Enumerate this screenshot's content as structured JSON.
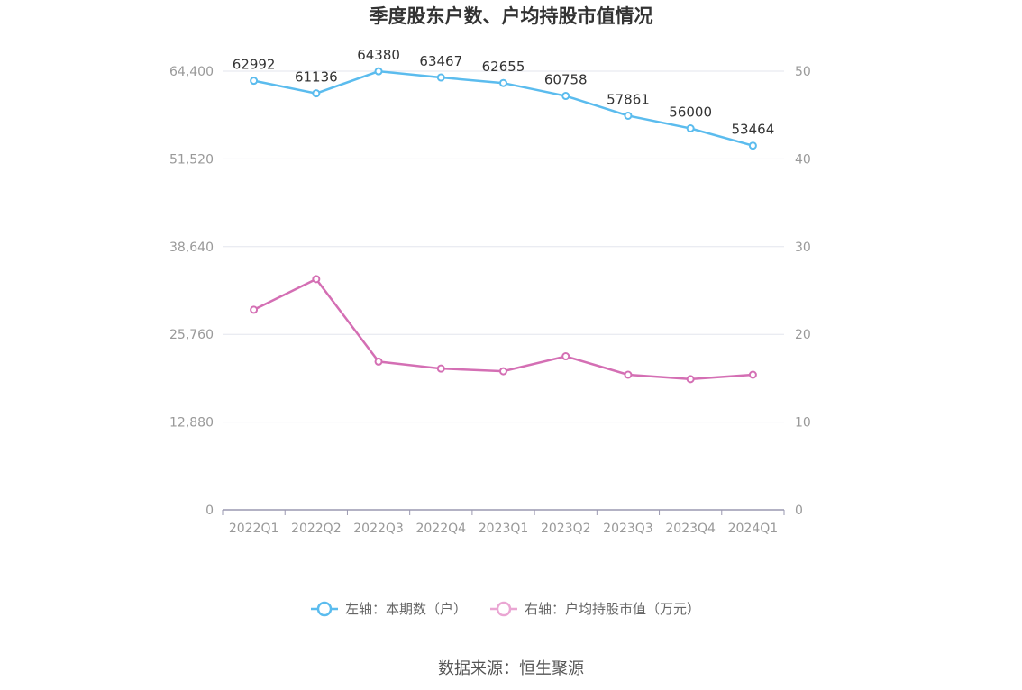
{
  "chart_data": {
    "type": "line",
    "title": "季度股东户数、户均持股市值情况",
    "categories": [
      "2022Q1",
      "2022Q2",
      "2022Q3",
      "2022Q4",
      "2023Q1",
      "2023Q2",
      "2023Q3",
      "2023Q4",
      "2024Q1"
    ],
    "left_axis": {
      "min": 0,
      "max": 64400,
      "ticks": [
        "0",
        "12,880",
        "25,760",
        "38,640",
        "51,520",
        "64,400"
      ]
    },
    "right_axis": {
      "min": 0,
      "max": 50,
      "ticks": [
        "0",
        "10",
        "20",
        "30",
        "40",
        "50"
      ]
    },
    "series": [
      {
        "name": "左轴：本期数（户）",
        "axis": "left",
        "color": "#5bbcee",
        "values": [
          62992,
          61136,
          64380,
          63467,
          62655,
          60758,
          57861,
          56000,
          53464
        ],
        "labels": [
          "62992",
          "61136",
          "64380",
          "63467",
          "62655",
          "60758",
          "57861",
          "56000",
          "53464"
        ]
      },
      {
        "name": "右轴：户均持股市值（万元）",
        "axis": "right",
        "color": "#d46fb4",
        "values": [
          22.8,
          26.3,
          16.9,
          16.1,
          15.8,
          17.5,
          15.4,
          14.9,
          15.4
        ]
      }
    ],
    "grid": true,
    "legend": "bottom-center"
  },
  "source": "数据来源：恒生聚源"
}
